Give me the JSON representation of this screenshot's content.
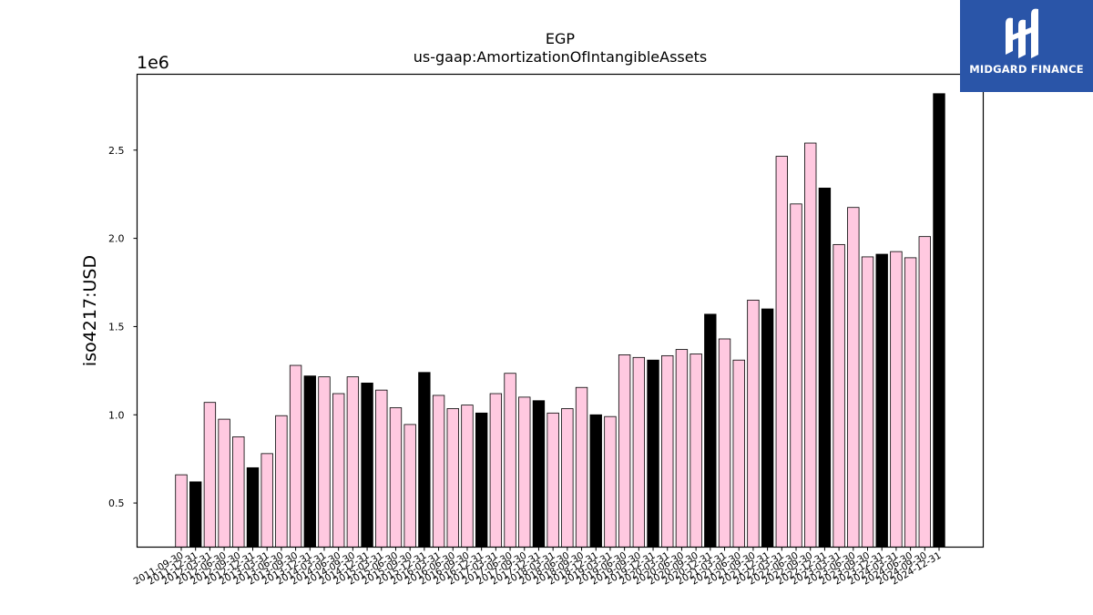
{
  "logo": {
    "text": "MIDGARD FINANCE",
    "background": "#2a55a8"
  },
  "chart_data": {
    "type": "bar",
    "title": "EGP",
    "subtitle": "us-gaap:AmortizationOfIntangibleAssets",
    "ylabel": "iso4217:USD",
    "xlabel": "",
    "y_offset_label": "1e6",
    "ylim": [
      250000,
      2930000
    ],
    "yticks": [
      500000,
      1000000,
      1500000,
      2000000,
      2500000
    ],
    "ytick_labels": [
      "0.5",
      "1.0",
      "1.5",
      "2.0",
      "2.5"
    ],
    "grid": false,
    "colors": {
      "q": "#ffc9e0",
      "fy": "#000000",
      "edge": "#000000"
    },
    "bars": [
      {
        "date": "2011-09-30",
        "value": 660000,
        "fy": false
      },
      {
        "date": "2011-12-31",
        "value": 620000,
        "fy": true
      },
      {
        "date": "2012-03-31",
        "value": 1070000,
        "fy": false
      },
      {
        "date": "2012-06-30",
        "value": 975000,
        "fy": false
      },
      {
        "date": "2012-09-30",
        "value": 875000,
        "fy": false
      },
      {
        "date": "2012-12-31",
        "value": 700000,
        "fy": true
      },
      {
        "date": "2013-03-31",
        "value": 780000,
        "fy": false
      },
      {
        "date": "2013-06-30",
        "value": 995000,
        "fy": false
      },
      {
        "date": "2013-09-30",
        "value": 1280000,
        "fy": false
      },
      {
        "date": "2013-12-31",
        "value": 1220000,
        "fy": true
      },
      {
        "date": "2014-03-31",
        "value": 1215000,
        "fy": false
      },
      {
        "date": "2014-06-30",
        "value": 1120000,
        "fy": false
      },
      {
        "date": "2014-09-30",
        "value": 1215000,
        "fy": false
      },
      {
        "date": "2014-12-31",
        "value": 1180000,
        "fy": true
      },
      {
        "date": "2015-03-31",
        "value": 1140000,
        "fy": false
      },
      {
        "date": "2015-06-30",
        "value": 1040000,
        "fy": false
      },
      {
        "date": "2015-09-30",
        "value": 945000,
        "fy": false
      },
      {
        "date": "2015-12-31",
        "value": 1240000,
        "fy": true
      },
      {
        "date": "2016-03-31",
        "value": 1110000,
        "fy": false
      },
      {
        "date": "2016-06-30",
        "value": 1035000,
        "fy": false
      },
      {
        "date": "2016-09-30",
        "value": 1055000,
        "fy": false
      },
      {
        "date": "2016-12-31",
        "value": 1010000,
        "fy": true
      },
      {
        "date": "2017-03-31",
        "value": 1120000,
        "fy": false
      },
      {
        "date": "2017-06-30",
        "value": 1235000,
        "fy": false
      },
      {
        "date": "2017-09-30",
        "value": 1100000,
        "fy": false
      },
      {
        "date": "2017-12-31",
        "value": 1080000,
        "fy": true
      },
      {
        "date": "2018-03-31",
        "value": 1010000,
        "fy": false
      },
      {
        "date": "2018-06-30",
        "value": 1035000,
        "fy": false
      },
      {
        "date": "2018-09-30",
        "value": 1155000,
        "fy": false
      },
      {
        "date": "2018-12-31",
        "value": 1000000,
        "fy": true
      },
      {
        "date": "2019-03-31",
        "value": 990000,
        "fy": false
      },
      {
        "date": "2019-06-30",
        "value": 1340000,
        "fy": false
      },
      {
        "date": "2019-09-30",
        "value": 1325000,
        "fy": false
      },
      {
        "date": "2019-12-31",
        "value": 1310000,
        "fy": true
      },
      {
        "date": "2020-03-31",
        "value": 1335000,
        "fy": false
      },
      {
        "date": "2020-06-30",
        "value": 1370000,
        "fy": false
      },
      {
        "date": "2020-09-30",
        "value": 1345000,
        "fy": false
      },
      {
        "date": "2020-12-31",
        "value": 1570000,
        "fy": true
      },
      {
        "date": "2021-03-31",
        "value": 1430000,
        "fy": false
      },
      {
        "date": "2021-06-30",
        "value": 1310000,
        "fy": false
      },
      {
        "date": "2021-09-30",
        "value": 1650000,
        "fy": false
      },
      {
        "date": "2021-12-31",
        "value": 1600000,
        "fy": true
      },
      {
        "date": "2022-03-31",
        "value": 2465000,
        "fy": false
      },
      {
        "date": "2022-06-30",
        "value": 2195000,
        "fy": false
      },
      {
        "date": "2022-09-30",
        "value": 2540000,
        "fy": false
      },
      {
        "date": "2022-12-31",
        "value": 2285000,
        "fy": true
      },
      {
        "date": "2023-03-31",
        "value": 1965000,
        "fy": false
      },
      {
        "date": "2023-06-30",
        "value": 2175000,
        "fy": false
      },
      {
        "date": "2023-09-30",
        "value": 1895000,
        "fy": false
      },
      {
        "date": "2023-12-31",
        "value": 1910000,
        "fy": true
      },
      {
        "date": "2024-03-31",
        "value": 1925000,
        "fy": false
      },
      {
        "date": "2024-06-30",
        "value": 1890000,
        "fy": false
      },
      {
        "date": "2024-09-30",
        "value": 2010000,
        "fy": false
      },
      {
        "date": "2024-12-31",
        "value": 2820000,
        "fy": true
      }
    ]
  }
}
